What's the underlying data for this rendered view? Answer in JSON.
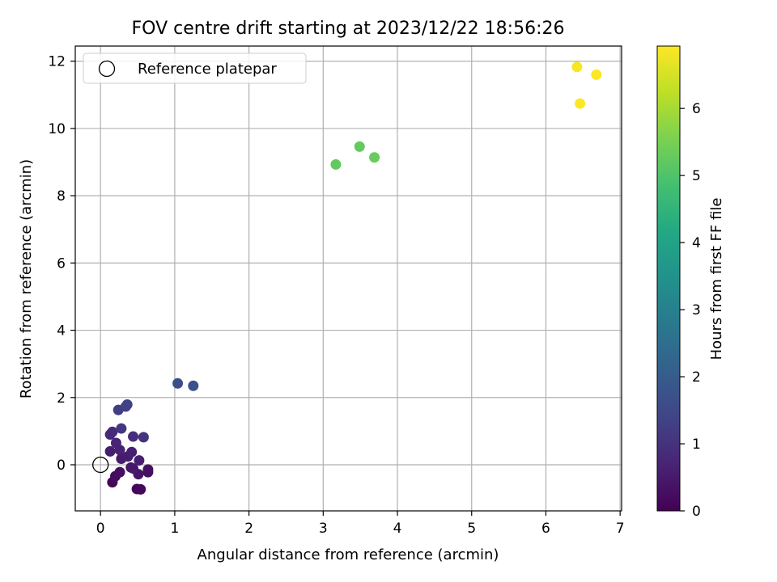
{
  "chart_data": {
    "type": "scatter",
    "title": "FOV centre drift starting at 2023/12/22 18:56:26",
    "xlabel": "Angular distance from reference (arcmin)",
    "ylabel": "Rotation from reference (arcmin)",
    "xlim": [
      -0.34,
      7.02
    ],
    "ylim": [
      -1.37,
      12.45
    ],
    "xticks": [
      0,
      1,
      2,
      3,
      4,
      5,
      6,
      7
    ],
    "yticks": [
      0,
      2,
      4,
      6,
      8,
      10,
      12
    ],
    "grid": true,
    "legend": {
      "placement": "top-left",
      "entries": [
        "Reference platepar"
      ]
    },
    "reference_point": {
      "x": 0,
      "y": 0,
      "marker": "open-circle"
    },
    "colorbar": {
      "label": "Hours from first FF file",
      "range": [
        0,
        6.93
      ],
      "ticks": [
        0,
        1,
        2,
        3,
        4,
        5,
        6
      ],
      "colormap": "viridis"
    },
    "points": [
      {
        "x": 0.16,
        "y": -0.52,
        "h": 0.1
      },
      {
        "x": 0.49,
        "y": -0.72,
        "h": 0.1
      },
      {
        "x": 0.54,
        "y": -0.73,
        "h": 0.15
      },
      {
        "x": 0.2,
        "y": -0.34,
        "h": 0.2
      },
      {
        "x": 0.26,
        "y": -0.22,
        "h": 0.25
      },
      {
        "x": 0.64,
        "y": -0.14,
        "h": 0.3
      },
      {
        "x": 0.64,
        "y": -0.22,
        "h": 0.3
      },
      {
        "x": 0.51,
        "y": -0.28,
        "h": 0.35
      },
      {
        "x": 0.41,
        "y": -0.08,
        "h": 0.4
      },
      {
        "x": 0.44,
        "y": -0.11,
        "h": 0.45
      },
      {
        "x": 0.28,
        "y": 0.18,
        "h": 0.5
      },
      {
        "x": 0.37,
        "y": 0.25,
        "h": 0.55
      },
      {
        "x": 0.52,
        "y": 0.13,
        "h": 0.6
      },
      {
        "x": 0.13,
        "y": 0.4,
        "h": 0.55
      },
      {
        "x": 0.42,
        "y": 0.38,
        "h": 0.6
      },
      {
        "x": 0.26,
        "y": 0.44,
        "h": 0.65
      },
      {
        "x": 0.21,
        "y": 0.65,
        "h": 0.7
      },
      {
        "x": 0.16,
        "y": 0.98,
        "h": 0.8
      },
      {
        "x": 0.13,
        "y": 0.9,
        "h": 0.85
      },
      {
        "x": 0.44,
        "y": 0.84,
        "h": 0.9
      },
      {
        "x": 0.58,
        "y": 0.82,
        "h": 1.05
      },
      {
        "x": 0.28,
        "y": 1.08,
        "h": 1.1
      },
      {
        "x": 0.24,
        "y": 1.63,
        "h": 1.25
      },
      {
        "x": 0.34,
        "y": 1.73,
        "h": 1.3
      },
      {
        "x": 0.36,
        "y": 1.79,
        "h": 1.35
      },
      {
        "x": 1.04,
        "y": 2.42,
        "h": 1.65
      },
      {
        "x": 1.25,
        "y": 2.35,
        "h": 1.7
      },
      {
        "x": 3.17,
        "y": 8.93,
        "h": 5.25
      },
      {
        "x": 3.49,
        "y": 9.46,
        "h": 5.28
      },
      {
        "x": 3.69,
        "y": 9.14,
        "h": 5.32
      },
      {
        "x": 6.42,
        "y": 11.83,
        "h": 6.88
      },
      {
        "x": 6.68,
        "y": 11.6,
        "h": 6.9
      },
      {
        "x": 6.46,
        "y": 10.74,
        "h": 6.92
      }
    ]
  }
}
